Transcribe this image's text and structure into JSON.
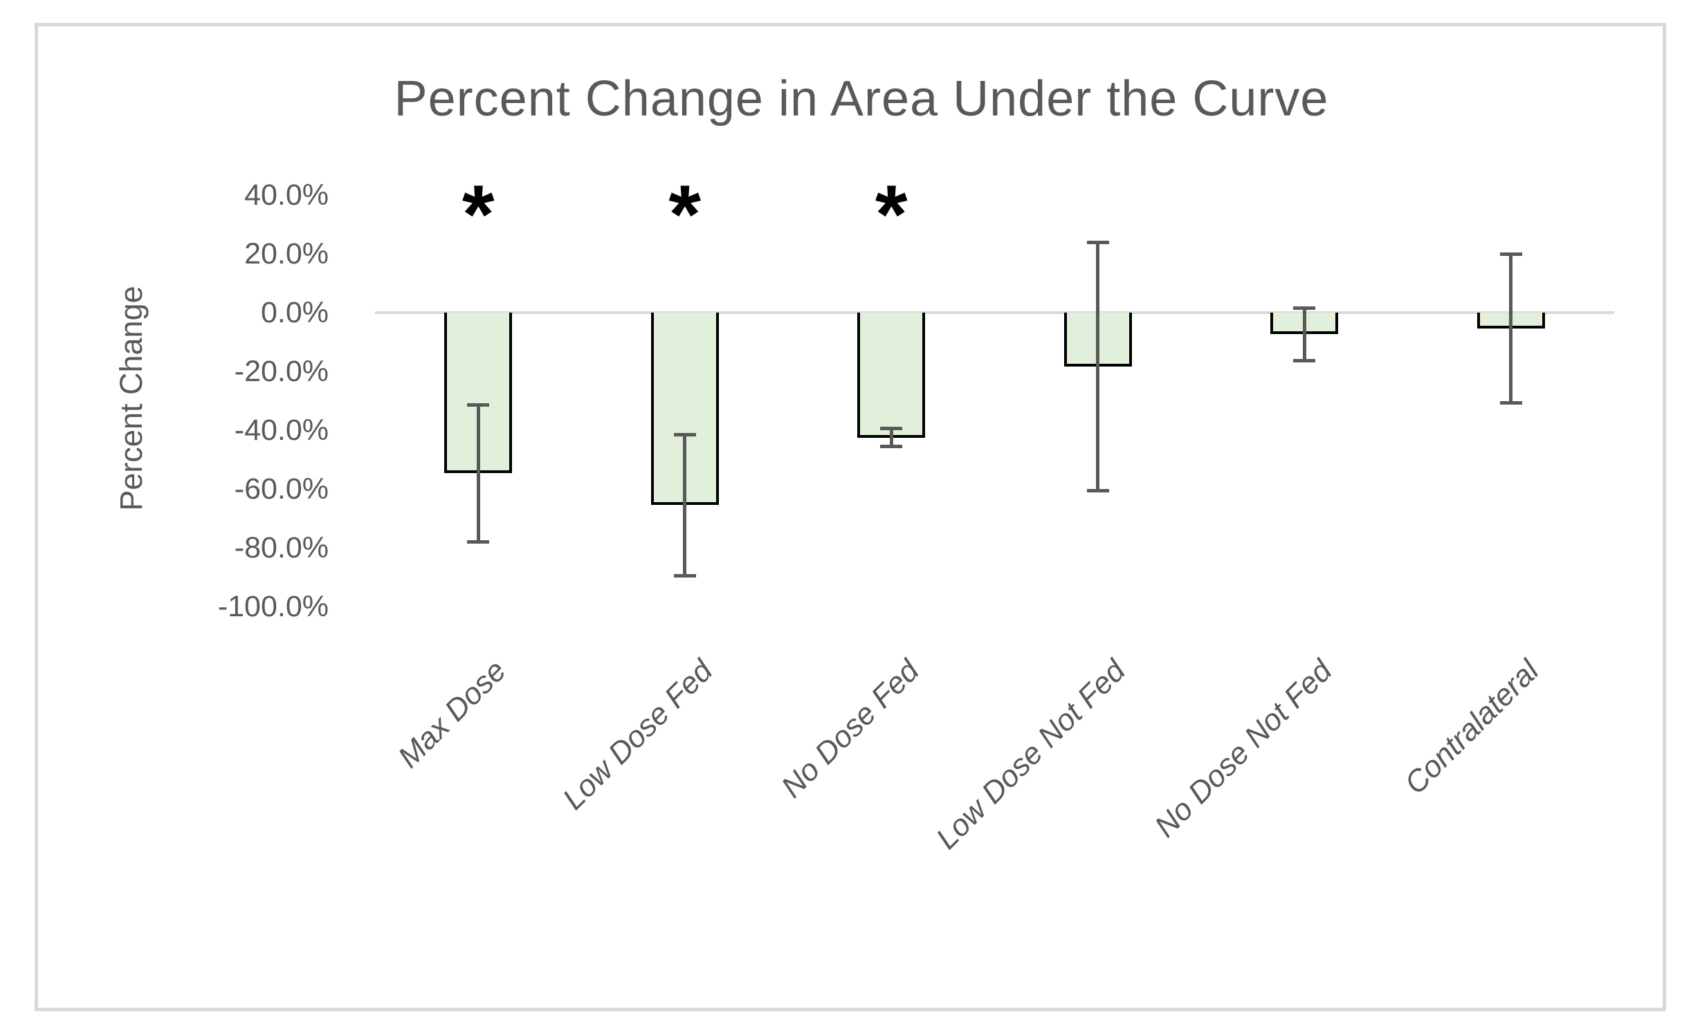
{
  "chart_data": {
    "type": "bar",
    "title": "Percent Change in Area Under the Curve",
    "xlabel": "",
    "ylabel": "Percent Change",
    "categories": [
      "Max Dose",
      "Low Dose Fed",
      "No Dose Fed",
      "Low Dose Not Fed",
      "No Dose Not Fed",
      "Contralateral"
    ],
    "values": [
      -54.6,
      -65.5,
      -42.5,
      -18.3,
      -7.4,
      -5.5
    ],
    "error_bars": [
      23.3,
      24.0,
      3.0,
      42.2,
      9.0,
      25.3
    ],
    "significance_markers": [
      "*",
      "*",
      "*",
      "",
      "",
      ""
    ],
    "y_tick_labels": [
      "40.0%",
      "20.0%",
      "0.0%",
      "-20.0%",
      "-40.0%",
      "-60.0%",
      "-80.0%",
      "-100.0%"
    ],
    "y_tick_values": [
      40,
      20,
      0,
      -20,
      -40,
      -60,
      -80,
      -100
    ],
    "ylim": [
      -100,
      40
    ],
    "grid": "zero-line-only",
    "legend_position": "none",
    "bar_fill_color": "#e2efda",
    "bar_border_color": "#000000",
    "error_bar_color": "#595959",
    "zero_line_color": "#d9d9d9",
    "frame_border_color": "#d9d9d9",
    "text_color": "#595959",
    "significance_color": "#000000"
  }
}
